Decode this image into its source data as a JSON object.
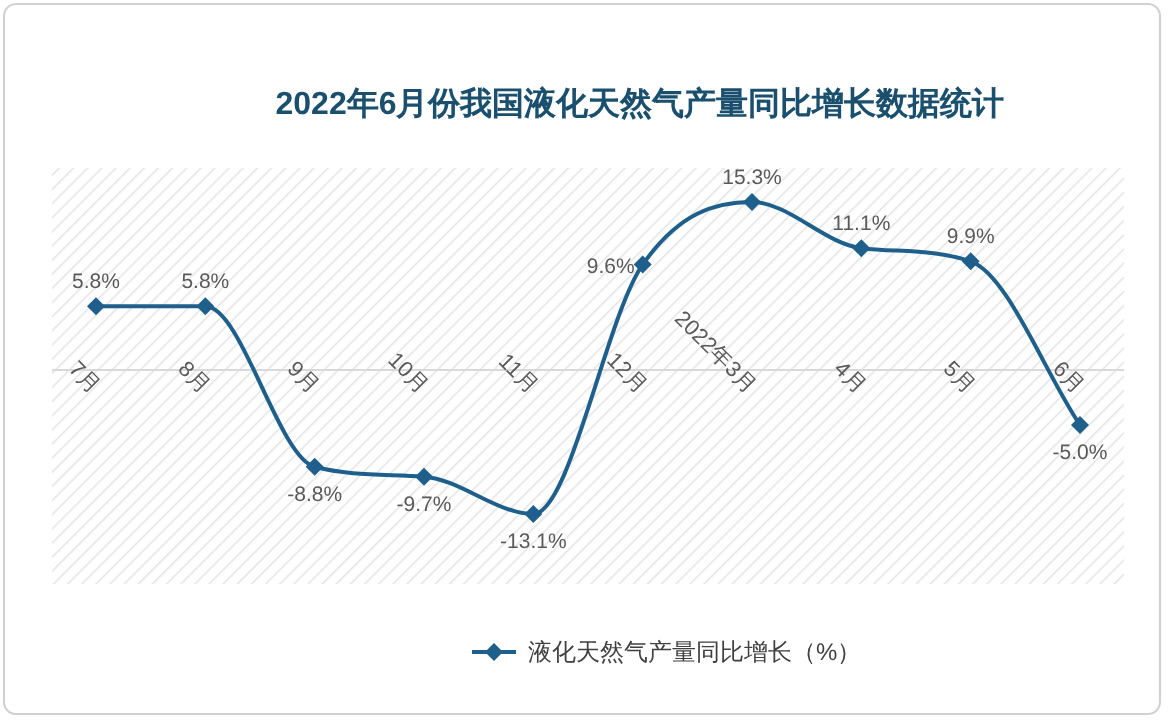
{
  "chart_data": {
    "type": "line",
    "title": "2022年6月份我国液化天然气产量同比增长数据统计",
    "categories": [
      "7月",
      "8月",
      "9月",
      "10月",
      "11月",
      "12月",
      "2022年3月",
      "4月",
      "5月",
      "6月"
    ],
    "series": [
      {
        "name": "液化天然气产量同比增长（%）",
        "color": "#1f5f8b",
        "values": [
          5.8,
          5.8,
          -8.8,
          -9.7,
          -13.1,
          9.6,
          15.3,
          11.1,
          9.9,
          -5.0
        ],
        "value_labels": [
          "5.8%",
          "5.8%",
          "-8.8%",
          "-9.7%",
          "-13.1%",
          "9.6%",
          "15.3%",
          "11.1%",
          "9.9%",
          "-5.0%"
        ]
      }
    ],
    "legend": "bottom",
    "marker": "diamond",
    "line_style": "solid"
  }
}
